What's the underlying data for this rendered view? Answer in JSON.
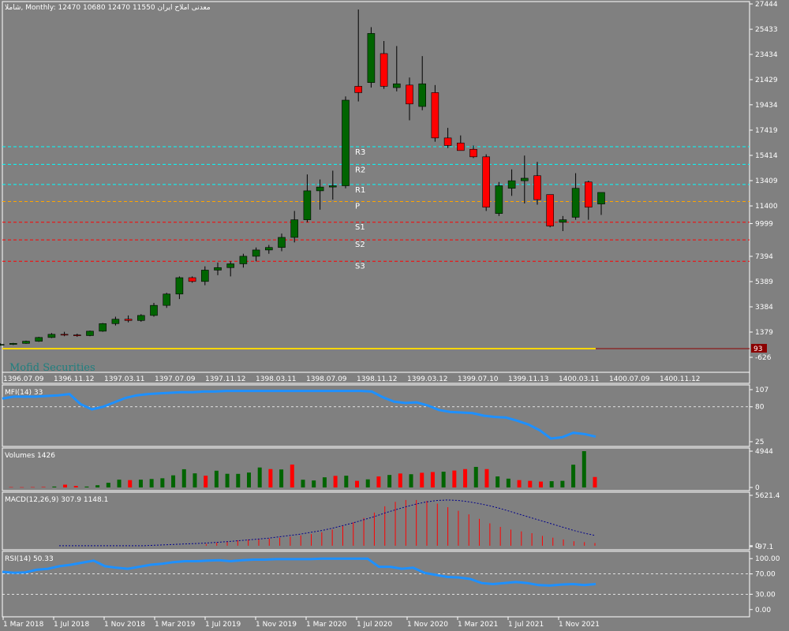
{
  "header": {
    "symbol_info": "شاملا, Monthly:  12470 10680 12470 11550  معدنی املاح ایران"
  },
  "watermark": "Mofid Securities",
  "colors": {
    "background": "#808080",
    "bull": "#006400",
    "bear": "#ff0000",
    "wick": "#000000",
    "indicator_line": "#1e90ff",
    "macd_hist": "#ff0000",
    "macd_signal": "#00008b",
    "resistance": "#00ffff",
    "support": "#ff0000",
    "pivot": "#ffa500",
    "volume_line": "#ffd700",
    "grid": "#ffffff"
  },
  "chart_data": [
    {
      "type": "candlestick",
      "name": "price",
      "ylim": [
        -626,
        27444
      ],
      "y_ticks": [
        "27444",
        "25433",
        "23434",
        "21429",
        "19434",
        "17419",
        "15414",
        "13409",
        "11400",
        "9999",
        "7394",
        "5389",
        "3384",
        "1379",
        "-626"
      ],
      "x_ticks_top": [
        "1396.07.09",
        "1396.11.12",
        "1397.03.11",
        "1397.07.09",
        "1397.11.12",
        "1398.03.11",
        "1398.07.09",
        "1398.11.12",
        "1399.03.12",
        "1399.07.10",
        "1399.11.13",
        "1400.03.11",
        "1400.07.09",
        "1400.11.12"
      ],
      "candles": [
        {
          "o": 300,
          "h": 420,
          "l": 250,
          "c": 330
        },
        {
          "o": 330,
          "h": 450,
          "l": 280,
          "c": 350
        },
        {
          "o": 350,
          "h": 480,
          "l": 300,
          "c": 400
        },
        {
          "o": 400,
          "h": 520,
          "l": 350,
          "c": 480
        },
        {
          "o": 480,
          "h": 700,
          "l": 450,
          "c": 650
        },
        {
          "o": 650,
          "h": 1000,
          "l": 600,
          "c": 950
        },
        {
          "o": 950,
          "h": 1300,
          "l": 900,
          "c": 1200
        },
        {
          "o": 1200,
          "h": 1400,
          "l": 1050,
          "c": 1150
        },
        {
          "o": 1150,
          "h": 1250,
          "l": 1000,
          "c": 1100
        },
        {
          "o": 1100,
          "h": 1500,
          "l": 1050,
          "c": 1450
        },
        {
          "o": 1450,
          "h": 2100,
          "l": 1400,
          "c": 2050
        },
        {
          "o": 2050,
          "h": 2600,
          "l": 1900,
          "c": 2400
        },
        {
          "o": 2400,
          "h": 2700,
          "l": 2150,
          "c": 2300
        },
        {
          "o": 2300,
          "h": 2800,
          "l": 2200,
          "c": 2700
        },
        {
          "o": 2700,
          "h": 3700,
          "l": 2600,
          "c": 3500
        },
        {
          "o": 3500,
          "h": 4500,
          "l": 3300,
          "c": 4400
        },
        {
          "o": 4400,
          "h": 5800,
          "l": 4000,
          "c": 5700
        },
        {
          "o": 5700,
          "h": 5800,
          "l": 5300,
          "c": 5400
        },
        {
          "o": 5400,
          "h": 6600,
          "l": 5100,
          "c": 6300
        },
        {
          "o": 6300,
          "h": 6900,
          "l": 5900,
          "c": 6500
        },
        {
          "o": 6500,
          "h": 7000,
          "l": 5800,
          "c": 6800
        },
        {
          "o": 6800,
          "h": 7600,
          "l": 6500,
          "c": 7400
        },
        {
          "o": 7400,
          "h": 8100,
          "l": 7000,
          "c": 7900
        },
        {
          "o": 7900,
          "h": 8300,
          "l": 7600,
          "c": 8100
        },
        {
          "o": 8100,
          "h": 9200,
          "l": 7800,
          "c": 8900
        },
        {
          "o": 8900,
          "h": 11000,
          "l": 8500,
          "c": 10300
        },
        {
          "o": 10300,
          "h": 13900,
          "l": 10100,
          "c": 12600
        },
        {
          "o": 12600,
          "h": 13500,
          "l": 11100,
          "c": 12900
        },
        {
          "o": 12900,
          "h": 14200,
          "l": 11900,
          "c": 13000
        },
        {
          "o": 13000,
          "h": 20100,
          "l": 12800,
          "c": 19800
        },
        {
          "o": 20900,
          "h": 27000,
          "l": 19700,
          "c": 20400
        },
        {
          "o": 21200,
          "h": 25600,
          "l": 20800,
          "c": 25100
        },
        {
          "o": 23500,
          "h": 24500,
          "l": 20700,
          "c": 20900
        },
        {
          "o": 20800,
          "h": 24100,
          "l": 20500,
          "c": 21100
        },
        {
          "o": 21000,
          "h": 21600,
          "l": 18200,
          "c": 19500
        },
        {
          "o": 19300,
          "h": 23300,
          "l": 19000,
          "c": 21100
        },
        {
          "o": 20400,
          "h": 21000,
          "l": 16500,
          "c": 16800
        },
        {
          "o": 16800,
          "h": 17600,
          "l": 16000,
          "c": 16200
        },
        {
          "o": 16400,
          "h": 17000,
          "l": 15800,
          "c": 15800
        },
        {
          "o": 15900,
          "h": 16200,
          "l": 15200,
          "c": 15300
        },
        {
          "o": 15300,
          "h": 15500,
          "l": 11000,
          "c": 11300
        },
        {
          "o": 10800,
          "h": 13300,
          "l": 10600,
          "c": 13000
        },
        {
          "o": 12800,
          "h": 14300,
          "l": 12200,
          "c": 13400
        },
        {
          "o": 13400,
          "h": 15400,
          "l": 11600,
          "c": 13600
        },
        {
          "o": 13800,
          "h": 14900,
          "l": 11500,
          "c": 11900
        },
        {
          "o": 12300,
          "h": 12300,
          "l": 9700,
          "c": 9800
        },
        {
          "o": 10100,
          "h": 10600,
          "l": 9400,
          "c": 10300
        },
        {
          "o": 10500,
          "h": 14000,
          "l": 10300,
          "c": 12800
        },
        {
          "o": 13300,
          "h": 13400,
          "l": 10300,
          "c": 11300
        },
        {
          "o": 11550,
          "h": 12470,
          "l": 10680,
          "c": 12470
        }
      ],
      "pivot_levels": [
        {
          "name": "R3",
          "value": 16100,
          "kind": "resistance"
        },
        {
          "name": "R2",
          "value": 14700,
          "kind": "resistance"
        },
        {
          "name": "R1",
          "value": 13100,
          "kind": "resistance"
        },
        {
          "name": "P",
          "value": 11750,
          "kind": "pivot"
        },
        {
          "name": "S1",
          "value": 10100,
          "kind": "support"
        },
        {
          "name": "S2",
          "value": 8700,
          "kind": "support"
        },
        {
          "name": "S3",
          "value": 7000,
          "kind": "support"
        }
      ],
      "volume_line": {
        "label": "93",
        "value": 93
      }
    },
    {
      "type": "line",
      "name": "mfi",
      "title": "MFI(14) 33",
      "ylim": [
        25,
        107
      ],
      "y_ticks": [
        "107",
        "80",
        "25"
      ],
      "levels": [
        80
      ],
      "values": [
        93,
        96,
        96,
        96,
        97,
        98,
        100,
        84,
        76,
        80,
        87,
        94,
        98,
        100,
        101,
        102,
        103,
        103,
        104,
        104,
        105,
        105,
        105,
        105,
        105,
        105,
        105,
        105,
        105,
        105,
        105,
        105,
        105,
        104,
        95,
        88,
        86,
        87,
        82,
        75,
        72,
        71,
        70,
        66,
        64,
        63,
        58,
        52,
        43,
        30,
        32,
        39,
        37,
        33
      ]
    },
    {
      "type": "bar",
      "name": "volumes",
      "title": "Volumes 1426",
      "ylim": [
        0,
        4944
      ],
      "y_ticks": [
        "4944",
        "0"
      ],
      "values": [
        40,
        30,
        40,
        60,
        120,
        380,
        200,
        120,
        300,
        640,
        1060,
        1000,
        1060,
        1150,
        1250,
        1650,
        2480,
        1920,
        1600,
        2280,
        1860,
        1850,
        2030,
        2720,
        2500,
        2450,
        3120,
        1050,
        950,
        1380,
        1580,
        1600,
        900,
        1100,
        1500,
        1700,
        1900,
        1800,
        2000,
        2100,
        2150,
        2300,
        2500,
        2800,
        2500,
        1500,
        1200,
        1000,
        900,
        800,
        850,
        900,
        3100,
        4944,
        1426
      ],
      "colors": [
        "r",
        "r",
        "r",
        "r",
        "g",
        "r",
        "r",
        "g",
        "g",
        "g",
        "g",
        "r",
        "g",
        "g",
        "g",
        "g",
        "g",
        "g",
        "r",
        "g",
        "g",
        "g",
        "g",
        "g",
        "r",
        "g",
        "r",
        "g",
        "g",
        "g",
        "r",
        "g",
        "r",
        "g",
        "r",
        "g",
        "r",
        "g",
        "r",
        "r",
        "g",
        "r",
        "r",
        "g",
        "r",
        "g",
        "g",
        "r",
        "r",
        "r",
        "g",
        "g",
        "g",
        "g",
        "r"
      ]
    },
    {
      "type": "bar",
      "name": "macd",
      "title": "MACD(12,26,9) 307.9 1148.1",
      "ylim": [
        -97.1,
        5621.4
      ],
      "y_ticks": [
        "5621.4",
        "0",
        "-97.1"
      ],
      "histogram": [
        0,
        0,
        0,
        0,
        0,
        0,
        0,
        0,
        0,
        0,
        0,
        0,
        0,
        0,
        200,
        350,
        500,
        600,
        700,
        750,
        800,
        900,
        1000,
        1150,
        1300,
        1500,
        1800,
        2200,
        2600,
        3100,
        3700,
        4400,
        4900,
        5100,
        5100,
        5000,
        4700,
        4300,
        3900,
        3500,
        3000,
        2500,
        2100,
        1800,
        1600,
        1400,
        1100,
        900,
        700,
        500,
        400,
        300
      ],
      "signal": [
        0,
        0,
        0,
        0,
        0,
        0,
        0,
        0,
        0,
        50,
        100,
        150,
        200,
        250,
        300,
        380,
        460,
        550,
        650,
        750,
        850,
        1000,
        1150,
        1300,
        1500,
        1700,
        1950,
        2250,
        2550,
        2900,
        3250,
        3650,
        4000,
        4350,
        4650,
        4900,
        5050,
        5100,
        5050,
        4900,
        4700,
        4450,
        4150,
        3800,
        3450,
        3100,
        2750,
        2400,
        2050,
        1700,
        1400,
        1150
      ]
    },
    {
      "type": "line",
      "name": "rsi",
      "title": "RSI(14) 50.33",
      "ylim": [
        -5,
        105
      ],
      "y_ticks": [
        "100.00",
        "70.00",
        "30.00",
        "0.00"
      ],
      "levels": [
        70,
        30
      ],
      "values": [
        74,
        72,
        73,
        78,
        80,
        85,
        88,
        92,
        96,
        85,
        82,
        80,
        84,
        88,
        90,
        93,
        95,
        95,
        96,
        97,
        95,
        97,
        98,
        98,
        99,
        99,
        99,
        99,
        100,
        100,
        100,
        100,
        100,
        84,
        84,
        80,
        82,
        72,
        68,
        64,
        63,
        60,
        52,
        50,
        52,
        54,
        52,
        48,
        47,
        49,
        50,
        48,
        50
      ]
    },
    {
      "type": "axis",
      "name": "time-axis",
      "x_ticks_bottom": [
        "1 Mar 2018",
        "1 Jul 2018",
        "1 Nov 2018",
        "1 Mar 2019",
        "1 Jul 2019",
        "1 Nov 2019",
        "1 Mar 2020",
        "1 Jul 2020",
        "1 Nov 2020",
        "1 Mar 2021",
        "1 Jul 2021",
        "1 Nov 2021"
      ]
    }
  ]
}
